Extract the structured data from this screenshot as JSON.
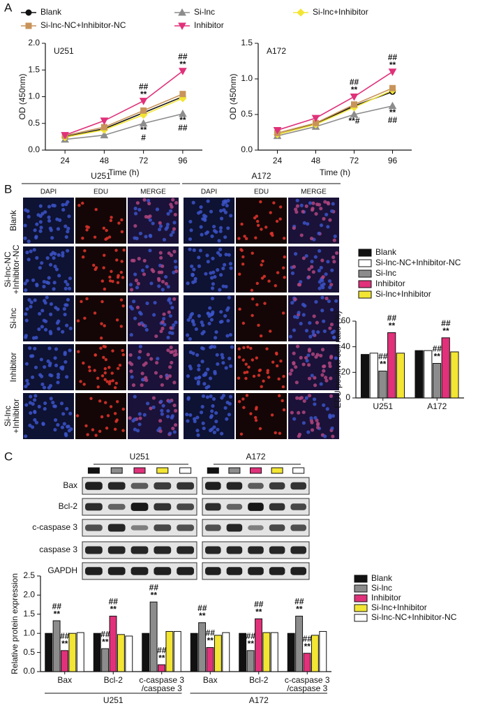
{
  "figure": {
    "panel_labels": [
      "A",
      "B",
      "C"
    ]
  },
  "images": {
    "groups": [
      "U251",
      "A172"
    ],
    "channels": [
      "DAPI",
      "EDU",
      "MERGE"
    ],
    "rows": [
      [
        "Blank"
      ],
      [
        "Si-lnc-NC",
        "+Inhibitor-NC"
      ],
      [
        "Si-lnc"
      ],
      [
        "Inhibitor"
      ],
      [
        "Si-lnc",
        "+Inhibitor"
      ]
    ]
  },
  "blots": {
    "groups": [
      "U251",
      "A172"
    ],
    "proteins": [
      "Bax",
      "Bcl-2",
      "c-caspase 3",
      "caspase 3",
      "GAPDH"
    ],
    "lane_colors": [
      "#111111",
      "#8c8c8c",
      "#e0317a",
      "#f3e533",
      "#ffffff"
    ]
  },
  "chart_data": [
    {
      "type": "line",
      "label": "U251",
      "x_label": "Time (h)",
      "y_label": "OD (450nm)",
      "x": [
        24,
        48,
        72,
        96
      ],
      "xlim": [
        12,
        108
      ],
      "xticks": [
        24,
        48,
        72,
        96
      ],
      "ylim": [
        0,
        2.0
      ],
      "yticks": [
        {
          "value": 0,
          "label": "0.0"
        },
        {
          "value": 0.5,
          "label": "0.5"
        },
        {
          "value": 1.0,
          "label": "1.0"
        },
        {
          "value": 1.5,
          "label": "1.5"
        },
        {
          "value": 2.0,
          "label": "2.0"
        }
      ],
      "series": [
        {
          "name": "Blank",
          "color": "#111111",
          "marker": "circle",
          "values": [
            0.25,
            0.4,
            0.7,
            1.0
          ]
        },
        {
          "name": "Si-lnc",
          "color": "#8c8c8c",
          "marker": "triangle",
          "values": [
            0.2,
            0.28,
            0.5,
            0.68
          ],
          "annotations": [
            null,
            null,
            [
              "**",
              "#"
            ],
            [
              "**",
              "##"
            ]
          ]
        },
        {
          "name": "Si-lnc+Inhibitor",
          "color": "#f3e533",
          "marker": "diamond",
          "values": [
            0.24,
            0.38,
            0.66,
            0.97
          ]
        },
        {
          "name": "Si-lnc-NC+Inhibitor-NC",
          "color": "#c8945a",
          "marker": "square",
          "values": [
            0.27,
            0.43,
            0.74,
            1.05
          ]
        },
        {
          "name": "Inhibitor",
          "color": "#e0317a",
          "marker": "triangle-down",
          "values": [
            0.28,
            0.55,
            0.92,
            1.48
          ],
          "annotations": [
            null,
            null,
            [
              "##",
              "**"
            ],
            [
              "##",
              "**"
            ]
          ]
        }
      ]
    },
    {
      "type": "line",
      "label": "A172",
      "x_label": "Time (h)",
      "y_label": "OD (450nm)",
      "x": [
        24,
        48,
        72,
        96
      ],
      "xlim": [
        12,
        108
      ],
      "xticks": [
        24,
        48,
        72,
        96
      ],
      "ylim": [
        0,
        1.5
      ],
      "yticks": [
        {
          "value": 0,
          "label": "0.0"
        },
        {
          "value": 0.5,
          "label": "0.5"
        },
        {
          "value": 1.0,
          "label": "1.0"
        },
        {
          "value": 1.5,
          "label": "1.5"
        }
      ],
      "series": [
        {
          "color": "#111111",
          "marker": "circle",
          "values": [
            0.22,
            0.37,
            0.62,
            0.82
          ]
        },
        {
          "color": "#8c8c8c",
          "marker": "triangle",
          "values": [
            0.2,
            0.33,
            0.5,
            0.62
          ],
          "annotations": [
            null,
            null,
            [
              "**#"
            ],
            [
              "**",
              "##"
            ]
          ]
        },
        {
          "color": "#f3e533",
          "marker": "diamond",
          "values": [
            0.22,
            0.36,
            0.6,
            0.84
          ]
        },
        {
          "color": "#c8945a",
          "marker": "square",
          "values": [
            0.24,
            0.38,
            0.64,
            0.87
          ]
        },
        {
          "color": "#e0317a",
          "marker": "triangle-down",
          "values": [
            0.28,
            0.45,
            0.75,
            1.1
          ],
          "annotations": [
            null,
            null,
            [
              "##",
              "**"
            ],
            [
              "##",
              "**"
            ]
          ]
        }
      ]
    },
    {
      "type": "bar",
      "y_label": "EDU positive cell ratio (%)",
      "categories": [
        [
          "U251"
        ],
        [
          "A172"
        ]
      ],
      "ylim": [
        0,
        60
      ],
      "yticks": [
        0,
        20,
        40,
        60
      ],
      "series": [
        {
          "name": "Blank",
          "color": "#111111",
          "values": [
            34,
            37
          ]
        },
        {
          "name": "Si-lnc-NC+Inhibitor-NC",
          "color": "#ffffff",
          "values": [
            35,
            37
          ]
        },
        {
          "name": "Si-lnc",
          "color": "#8c8c8c",
          "values": [
            21,
            27
          ],
          "annotations": [
            [
              "##",
              "**"
            ],
            [
              "##",
              "**"
            ]
          ]
        },
        {
          "name": "Inhibitor",
          "color": "#e0317a",
          "values": [
            51,
            47
          ],
          "annotations": [
            [
              "##",
              "**"
            ],
            [
              "##",
              "**"
            ]
          ]
        },
        {
          "name": "Si-lnc+Inhibitor",
          "color": "#f3e533",
          "values": [
            35,
            36
          ]
        }
      ]
    },
    {
      "type": "bar",
      "y_label": "Relative protein expression",
      "categories": [
        [
          "Bax"
        ],
        [
          "Bcl-2"
        ],
        [
          "c-caspase 3",
          "/caspase 3"
        ],
        [
          "Bax"
        ],
        [
          "Bcl-2"
        ],
        [
          "c-caspase 3",
          "/caspase 3"
        ]
      ],
      "groups": [
        "U251",
        "A172"
      ],
      "ylim": [
        0,
        2.5
      ],
      "yticks": [
        {
          "value": 0,
          "label": "0.0"
        },
        {
          "value": 0.5,
          "label": "0.5"
        },
        {
          "value": 1.0,
          "label": "1.0"
        },
        {
          "value": 1.5,
          "label": "1.5"
        },
        {
          "value": 2.0,
          "label": "2.0"
        },
        {
          "value": 2.5,
          "label": "2.5"
        }
      ],
      "series": [
        {
          "name": "Blank",
          "color": "#111111",
          "values": [
            1.0,
            1.0,
            1.0,
            1.0,
            1.0,
            1.0
          ]
        },
        {
          "name": "Si-lnc",
          "color": "#8c8c8c",
          "values": [
            1.33,
            0.6,
            1.82,
            1.28,
            0.55,
            1.45
          ],
          "annotations": [
            [
              "##",
              "**"
            ],
            [
              "##",
              "**"
            ],
            [
              "##",
              "**"
            ],
            [
              "##",
              "**"
            ],
            [
              "##",
              "**"
            ],
            [
              "##",
              "**"
            ]
          ]
        },
        {
          "name": "Inhibitor",
          "color": "#e0317a",
          "values": [
            0.55,
            1.45,
            0.18,
            0.63,
            1.38,
            0.48
          ],
          "annotations": [
            [
              "##",
              "**"
            ],
            [
              "##",
              "**"
            ],
            [
              "##",
              "**"
            ],
            [
              "##",
              "**"
            ],
            [
              "##",
              "**"
            ],
            [
              "##",
              "**"
            ]
          ]
        },
        {
          "name": "Si-lnc+Inhibitor",
          "color": "#f3e533",
          "values": [
            1.0,
            0.97,
            1.05,
            0.95,
            1.02,
            0.95
          ]
        },
        {
          "name": "Si-lnc-NC+Inhibitor-NC",
          "color": "#ffffff",
          "values": [
            1.02,
            0.93,
            1.05,
            1.02,
            1.02,
            1.05
          ]
        }
      ]
    }
  ]
}
